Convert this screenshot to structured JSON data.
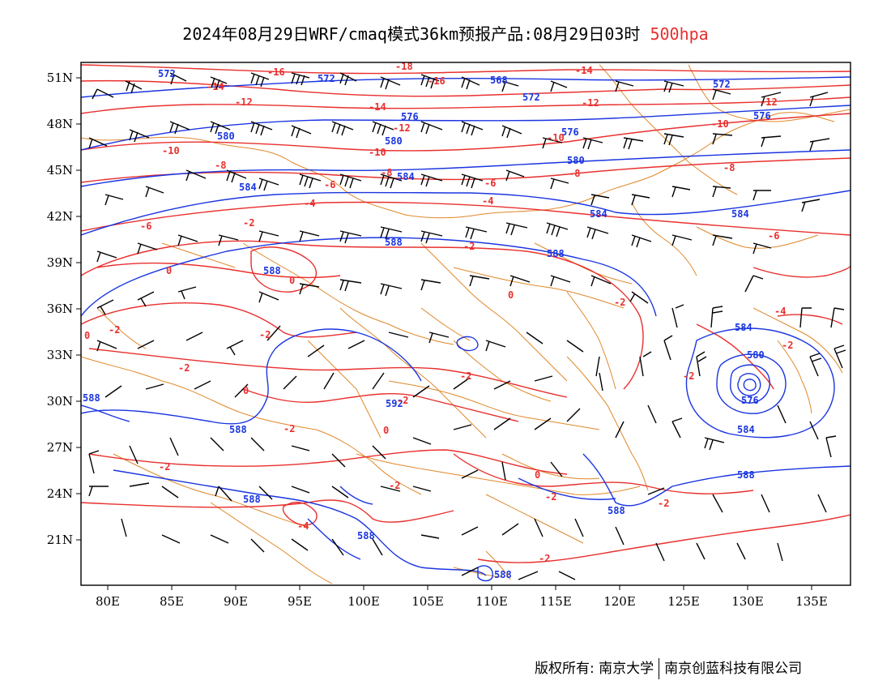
{
  "title": {
    "main": "2024年08月29日WRF/cmaq模式36km预报产品:08月29日03时",
    "level": "500hpa"
  },
  "axes": {
    "lat_labels": [
      "51N",
      "48N",
      "45N",
      "42N",
      "39N",
      "36N",
      "33N",
      "30N",
      "27N",
      "24N",
      "21N"
    ],
    "lon_labels": [
      "80E",
      "85E",
      "90E",
      "95E",
      "100E",
      "105E",
      "110E",
      "115E",
      "120E",
      "125E",
      "130E",
      "135E"
    ]
  },
  "colors": {
    "height_contour": "#1a35e0",
    "temperature_contour": "#e8302e",
    "borders": "#e0882a",
    "wind_barbs": "#000000",
    "level_text": "#e8302e"
  },
  "height_labels": [
    "572",
    "572",
    "568",
    "572",
    "572",
    "576",
    "576",
    "576",
    "580",
    "580",
    "580",
    "584",
    "584",
    "584",
    "584",
    "588",
    "588",
    "588",
    "588",
    "588",
    "588",
    "588",
    "588",
    "592",
    "584",
    "580",
    "576",
    "584",
    "588",
    "588"
  ],
  "temperature_labels": [
    "-16",
    "-18",
    "-16",
    "-14",
    "-14",
    "-12",
    "-14",
    "-12",
    "-12",
    "-12",
    "-10",
    "-10",
    "-10",
    "-10",
    "-8",
    "-8",
    "-8",
    "-8",
    "-6",
    "-6",
    "-6",
    "-4",
    "-4",
    "-2",
    "-6",
    "-2",
    "0",
    "0",
    "0",
    "-2",
    "-4",
    "0",
    "-2",
    "-2",
    "-2",
    "-2",
    "-2",
    "0",
    "-2",
    "0",
    "0",
    "-2",
    "-2",
    "-2",
    "-4",
    "-2",
    "-2",
    "-2",
    "-2"
  ],
  "copyright": {
    "left": "版权所有: 南京大学",
    "right": "南京创蓝科技有限公司"
  }
}
